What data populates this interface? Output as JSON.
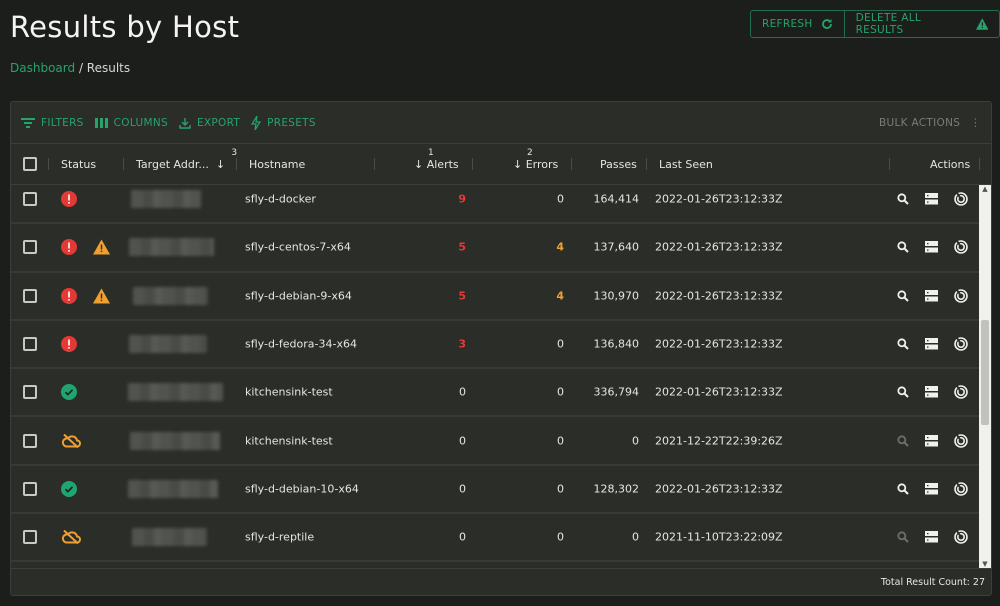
{
  "page": {
    "title": "Results by Host",
    "breadcrumb": [
      "Dashboard",
      "Results"
    ]
  },
  "top_buttons": {
    "refresh": "REFRESH",
    "delete_all": "DELETE ALL RESULTS"
  },
  "toolbar": {
    "filters": "FILTERS",
    "columns": "COLUMNS",
    "export": "EXPORT",
    "presets": "PRESETS",
    "bulk_actions": "BULK ACTIONS"
  },
  "columns": {
    "status": "Status",
    "target": "Target Addr...",
    "target_sort": "3",
    "hostname": "Hostname",
    "alerts": "Alerts",
    "alerts_sort": "1",
    "errors": "Errors",
    "errors_sort": "2",
    "passes": "Passes",
    "last_seen": "Last Seen",
    "actions": "Actions"
  },
  "colors": {
    "accent": "#27a36c",
    "error": "#e53935",
    "warning": "#f0a030",
    "ok": "#1fa56f"
  },
  "rows": [
    {
      "status": [
        "error"
      ],
      "hostname": "sfly-d-docker",
      "alerts": "9",
      "errors": "0",
      "passes": "164,414",
      "last_seen": "2022-01-26T23:12:33Z",
      "search_enabled": true
    },
    {
      "status": [
        "error",
        "warning"
      ],
      "hostname": "sfly-d-centos-7-x64",
      "alerts": "5",
      "errors": "4",
      "passes": "137,640",
      "last_seen": "2022-01-26T23:12:33Z",
      "search_enabled": true
    },
    {
      "status": [
        "error",
        "warning"
      ],
      "hostname": "sfly-d-debian-9-x64",
      "alerts": "5",
      "errors": "4",
      "passes": "130,970",
      "last_seen": "2022-01-26T23:12:33Z",
      "search_enabled": true
    },
    {
      "status": [
        "error"
      ],
      "hostname": "sfly-d-fedora-34-x64",
      "alerts": "3",
      "errors": "0",
      "passes": "136,840",
      "last_seen": "2022-01-26T23:12:33Z",
      "search_enabled": true
    },
    {
      "status": [
        "ok"
      ],
      "hostname": "kitchensink-test",
      "alerts": "0",
      "errors": "0",
      "passes": "336,794",
      "last_seen": "2022-01-26T23:12:33Z",
      "search_enabled": true
    },
    {
      "status": [
        "offline"
      ],
      "hostname": "kitchensink-test",
      "alerts": "0",
      "errors": "0",
      "passes": "0",
      "last_seen": "2021-12-22T22:39:26Z",
      "search_enabled": false
    },
    {
      "status": [
        "ok"
      ],
      "hostname": "sfly-d-debian-10-x64",
      "alerts": "0",
      "errors": "0",
      "passes": "128,302",
      "last_seen": "2022-01-26T23:12:33Z",
      "search_enabled": true
    },
    {
      "status": [
        "offline"
      ],
      "hostname": "sfly-d-reptile",
      "alerts": "0",
      "errors": "0",
      "passes": "0",
      "last_seen": "2021-11-10T23:22:09Z",
      "search_enabled": false
    }
  ],
  "footer": {
    "total": "Total Result Count: 27"
  }
}
